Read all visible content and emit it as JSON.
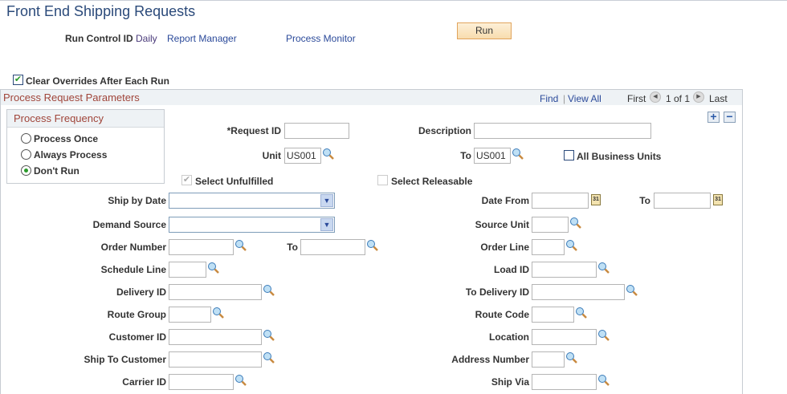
{
  "page": {
    "title": "Front End Shipping Requests"
  },
  "header": {
    "run_control_label": "Run Control ID",
    "run_control_value": "Daily",
    "report_manager": "Report Manager",
    "process_monitor": "Process Monitor",
    "run_button": "Run"
  },
  "clear_overrides": {
    "label": "Clear Overrides After Each Run",
    "checked": true
  },
  "panel": {
    "title": "Process Request Parameters",
    "find": "Find",
    "separator": "|",
    "view_all": "View All",
    "first": "First",
    "count": "1 of 1",
    "last": "Last"
  },
  "frequency": {
    "title": "Process Frequency",
    "options": [
      {
        "label": "Process Once",
        "selected": false
      },
      {
        "label": "Always Process",
        "selected": false
      },
      {
        "label": "Don't Run",
        "selected": true
      }
    ]
  },
  "fields": {
    "request_id": {
      "label": "*Request ID",
      "value": ""
    },
    "description": {
      "label": "Description",
      "value": ""
    },
    "unit": {
      "label": "Unit",
      "value": "US001"
    },
    "unit_to": {
      "label": "To",
      "value": "US001"
    },
    "all_business_units": {
      "label": "All Business Units",
      "checked": false
    },
    "select_unfulfilled": {
      "label": "Select Unfulfilled",
      "checked": true,
      "disabled": true
    },
    "select_releasable": {
      "label": "Select Releasable",
      "checked": false,
      "disabled": true
    },
    "ship_by_date": {
      "label": "Ship by Date",
      "value": ""
    },
    "date_from": {
      "label": "Date From",
      "value": ""
    },
    "date_to": {
      "label": "To",
      "value": ""
    },
    "demand_source": {
      "label": "Demand Source",
      "value": ""
    },
    "source_unit": {
      "label": "Source Unit",
      "value": ""
    },
    "order_number": {
      "label": "Order Number",
      "value": ""
    },
    "order_number_to": {
      "label": "To",
      "value": ""
    },
    "order_line": {
      "label": "Order Line",
      "value": ""
    },
    "schedule_line": {
      "label": "Schedule Line",
      "value": ""
    },
    "load_id": {
      "label": "Load ID",
      "value": ""
    },
    "delivery_id": {
      "label": "Delivery ID",
      "value": ""
    },
    "to_delivery_id": {
      "label": "To Delivery ID",
      "value": ""
    },
    "route_group": {
      "label": "Route Group",
      "value": ""
    },
    "route_code": {
      "label": "Route Code",
      "value": ""
    },
    "customer_id": {
      "label": "Customer ID",
      "value": ""
    },
    "location": {
      "label": "Location",
      "value": ""
    },
    "ship_to_customer": {
      "label": "Ship To Customer",
      "value": ""
    },
    "address_number": {
      "label": "Address Number",
      "value": ""
    },
    "carrier_id": {
      "label": "Carrier ID",
      "value": ""
    },
    "ship_via": {
      "label": "Ship Via",
      "value": ""
    }
  },
  "colors": {
    "title": "#2b4a7a",
    "section_header": "#a0453a",
    "link": "#2b4a9a",
    "run_button": "#f8dcae"
  }
}
